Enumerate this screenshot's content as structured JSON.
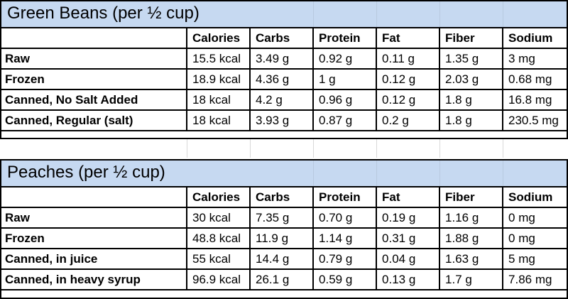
{
  "columns": [
    "Calories",
    "Carbs",
    "Protein",
    "Fat",
    "Fiber",
    "Sodium"
  ],
  "tables": [
    {
      "title": "Green Beans (per ½ cup)",
      "rows": [
        {
          "label": "Raw",
          "values": [
            "15.5 kcal",
            "3.49 g",
            "0.92 g",
            "0.11 g",
            "1.35 g",
            "3 mg"
          ]
        },
        {
          "label": "Frozen",
          "values": [
            "18.9 kcal",
            "4.36 g",
            "1 g",
            "0.12 g",
            "2.03 g",
            "0.68 mg"
          ]
        },
        {
          "label": "Canned, No Salt Added",
          "values": [
            "18 kcal",
            "4.2 g",
            "0.96 g",
            "0.12 g",
            "1.8 g",
            "16.8 mg"
          ]
        },
        {
          "label": "Canned, Regular (salt)",
          "values": [
            "18 kcal",
            "3.93 g",
            "0.87 g",
            "0.2 g",
            "1.8 g",
            "230.5 mg"
          ]
        }
      ]
    },
    {
      "title": "Peaches (per ½ cup)",
      "rows": [
        {
          "label": "Raw",
          "values": [
            "30 kcal",
            "7.35 g",
            "0.70 g",
            "0.19 g",
            "1.16 g",
            "0 mg"
          ]
        },
        {
          "label": "Frozen",
          "values": [
            "48.8 kcal",
            "11.9 g",
            "1.14 g",
            "0.31 g",
            "1.88 g",
            "0 mg"
          ]
        },
        {
          "label": "Canned, in juice",
          "values": [
            "55 kcal",
            "14.4 g",
            "0.79 g",
            "0.04 g",
            "1.63 g",
            "5 mg"
          ]
        },
        {
          "label": "Canned, in heavy syrup",
          "values": [
            "96.9 kcal",
            "26.1 g",
            "0.59 g",
            "0.13 g",
            "1.7 g",
            "7.86 mg"
          ]
        }
      ]
    }
  ],
  "colors": {
    "title_band": "#c6d9f1",
    "border": "#000000",
    "gap_gridline": "#d9d9d9"
  }
}
